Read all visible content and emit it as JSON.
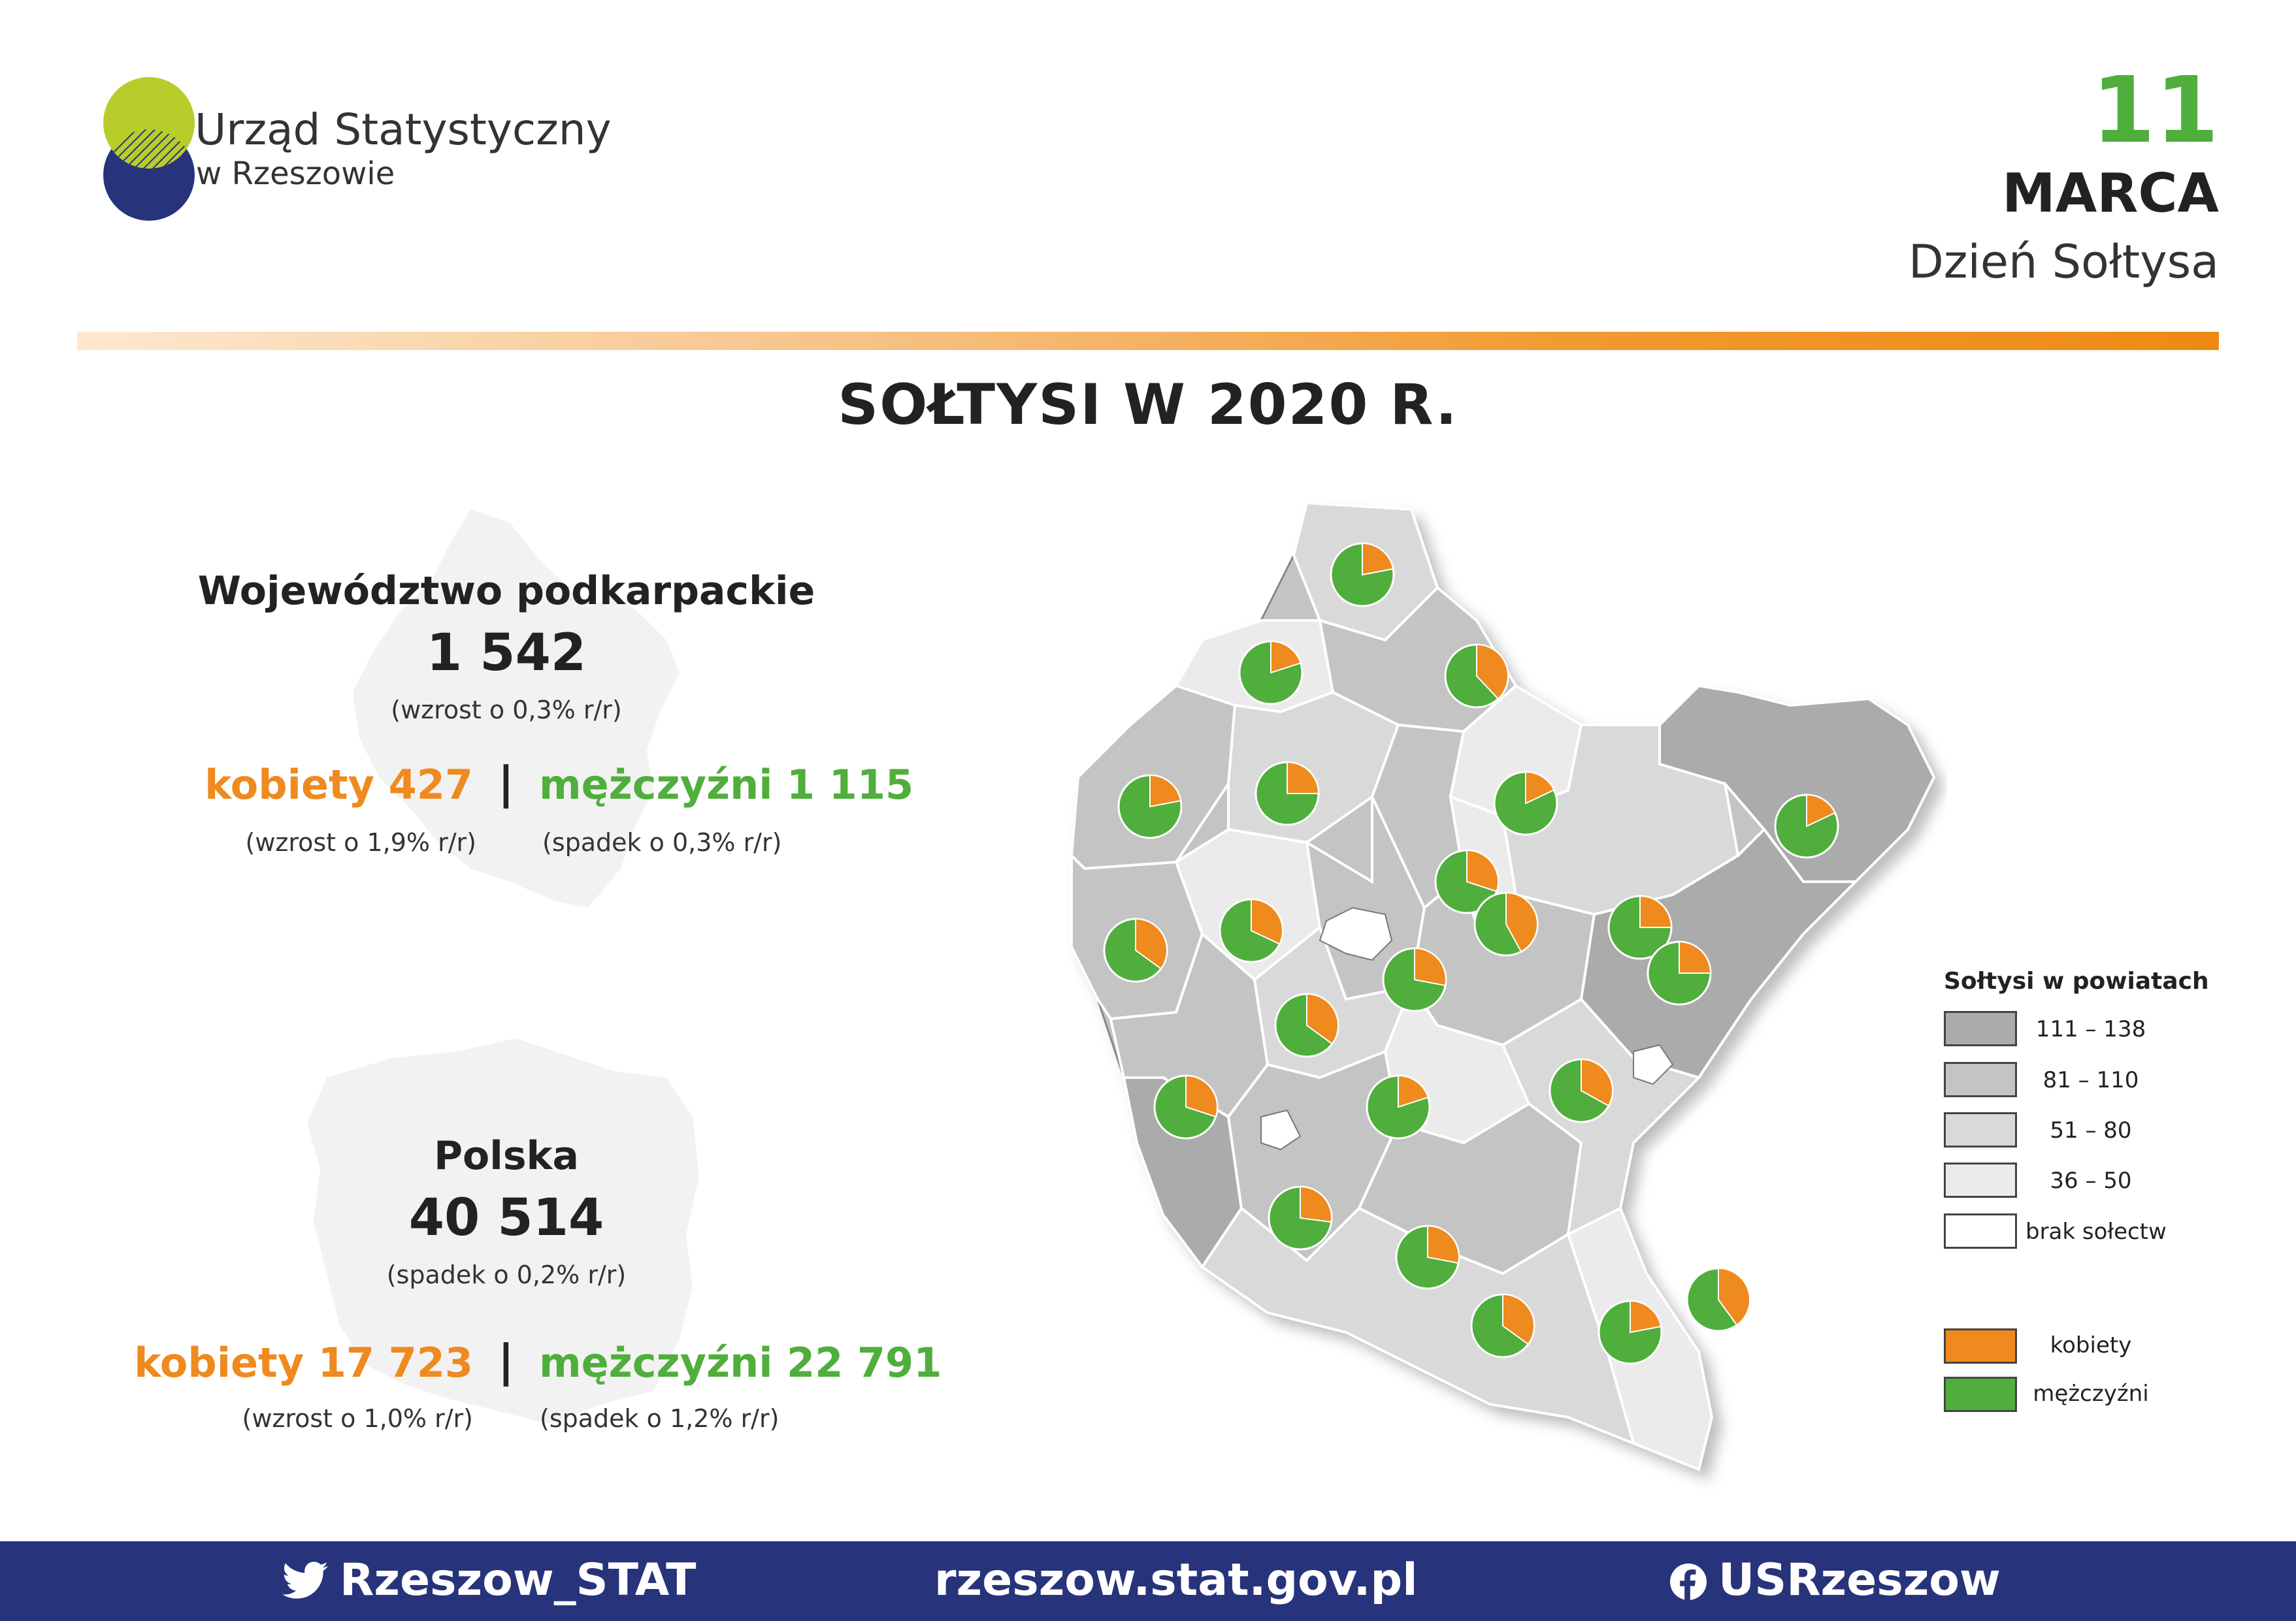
{
  "header": {
    "org_name": "Urząd Statystyczny",
    "org_sub": "w Rzeszowie",
    "date_day": "11",
    "date_month": "MARCA",
    "date_event": "Dzień Sołtysa"
  },
  "title": "SOŁTYSI  W  2020 R.",
  "region": {
    "name": "Województwo podkarpackie",
    "total": "1 542",
    "total_change": "(wzrost o 0,3% r/r)",
    "women_label": "kobiety 427",
    "women_change": "(wzrost o 1,9% r/r)",
    "men_label": "mężczyźni 1 115",
    "men_change": "(spadek o 0,3% r/r)"
  },
  "poland": {
    "name": "Polska",
    "total": "40 514",
    "total_change": "(spadek o 0,2% r/r)",
    "women_label": "kobiety 17 723",
    "women_change": "(wzrost o 1,0% r/r)",
    "men_label": "mężczyźni 22 791",
    "men_change": "(spadek o 1,2% r/r)"
  },
  "separator": "|",
  "legend": {
    "title": "Sołtysi w powiatach",
    "classes": [
      {
        "label": "111 – 138",
        "color": "#ababab"
      },
      {
        "label": "81 – 110",
        "color": "#c4c4c4"
      },
      {
        "label": "51 – 80",
        "color": "#d9d9d9"
      },
      {
        "label": "36 – 50",
        "color": "#ebebeb"
      },
      {
        "label": "brak sołectw",
        "color": "#ffffff"
      }
    ],
    "series": [
      {
        "label": "kobiety",
        "color": "#ef8a1e"
      },
      {
        "label": "mężczyźni",
        "color": "#4fae3c"
      }
    ]
  },
  "colors": {
    "women": "#ef8a1e",
    "men": "#4fae3c",
    "footer_bg": "#27337a"
  },
  "map": {
    "district_pies_female_share": [
      0.22,
      0.2,
      0.38,
      0.22,
      0.25,
      0.18,
      0.18,
      0.3,
      0.42,
      0.25,
      0.35,
      0.32,
      0.28,
      0.35,
      0.25,
      0.3,
      0.2,
      0.33,
      0.27,
      0.28,
      0.22,
      0.35,
      0.4,
      0.38
    ]
  },
  "footer": {
    "twitter": "Rzeszow_STAT",
    "website": "rzeszow.stat.gov.pl",
    "facebook": "USRzeszow"
  }
}
